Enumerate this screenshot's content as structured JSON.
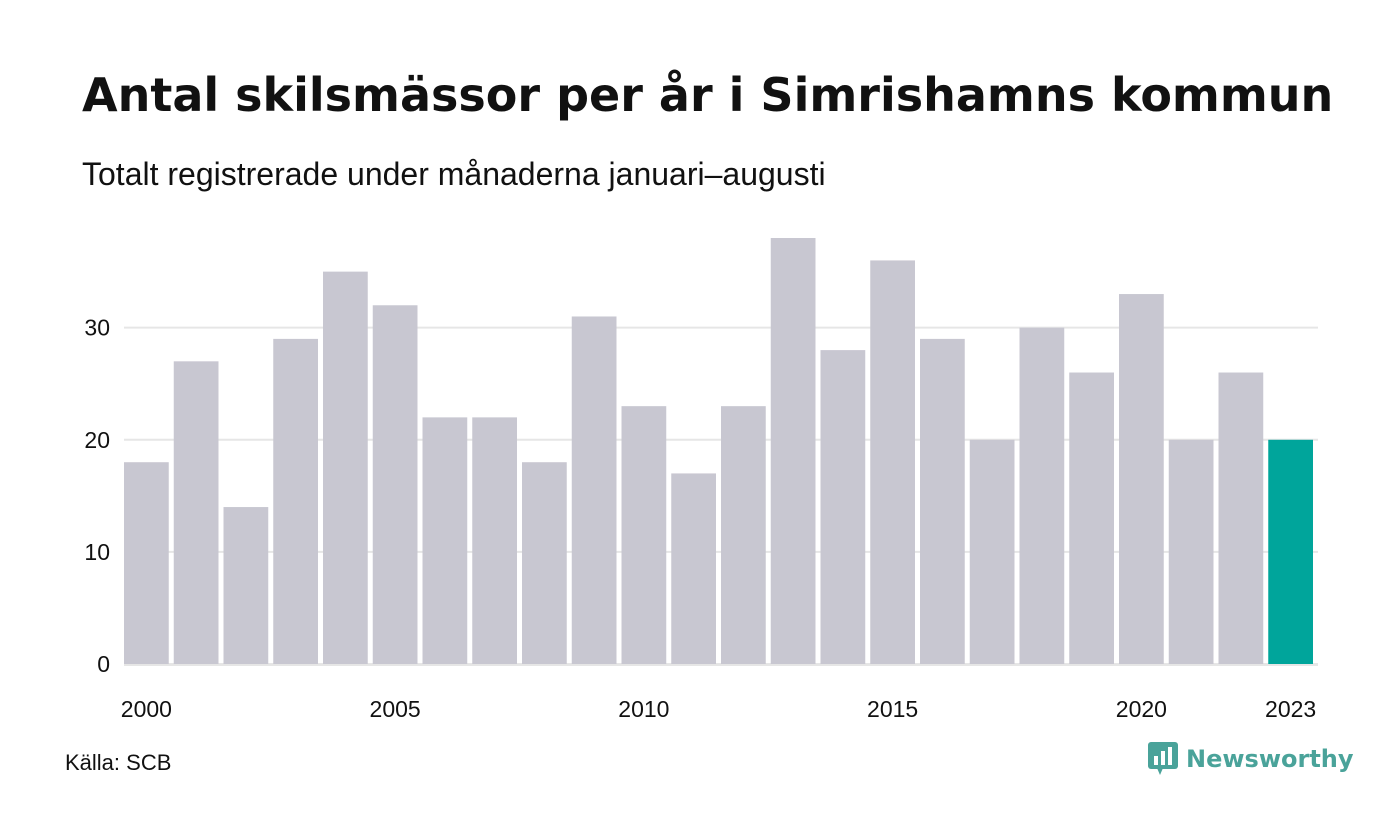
{
  "title": "Antal skilsmässor per år i Simrishamns kommun",
  "subtitle": "Totalt registrerade under månaderna januari–augusti",
  "source": "Källa: SCB",
  "brand": "Newsworthy",
  "colors": {
    "bar": "#c8c7d1",
    "highlight": "#00a59b",
    "grid": "#e6e6e6",
    "brand": "#4aa39a"
  },
  "chart_data": {
    "type": "bar",
    "title": "Antal skilsmässor per år i Simrishamns kommun",
    "subtitle": "Totalt registrerade under månaderna januari–augusti",
    "xlabel": "",
    "ylabel": "",
    "categories": [
      "2000",
      "2001",
      "2002",
      "2003",
      "2004",
      "2005",
      "2006",
      "2007",
      "2008",
      "2009",
      "2010",
      "2011",
      "2012",
      "2013",
      "2014",
      "2015",
      "2016",
      "2017",
      "2018",
      "2019",
      "2020",
      "2021",
      "2022",
      "2023"
    ],
    "values": [
      18,
      27,
      14,
      29,
      35,
      32,
      22,
      22,
      18,
      31,
      23,
      17,
      23,
      38,
      28,
      36,
      29,
      20,
      30,
      26,
      33,
      20,
      26,
      20
    ],
    "highlight_category": "2023",
    "x_tick_labels": [
      "2000",
      "2005",
      "2010",
      "2015",
      "2020",
      "2023"
    ],
    "y_ticks": [
      0,
      10,
      20,
      30
    ],
    "ylim": [
      0,
      38
    ],
    "grid": true,
    "legend": "none"
  }
}
